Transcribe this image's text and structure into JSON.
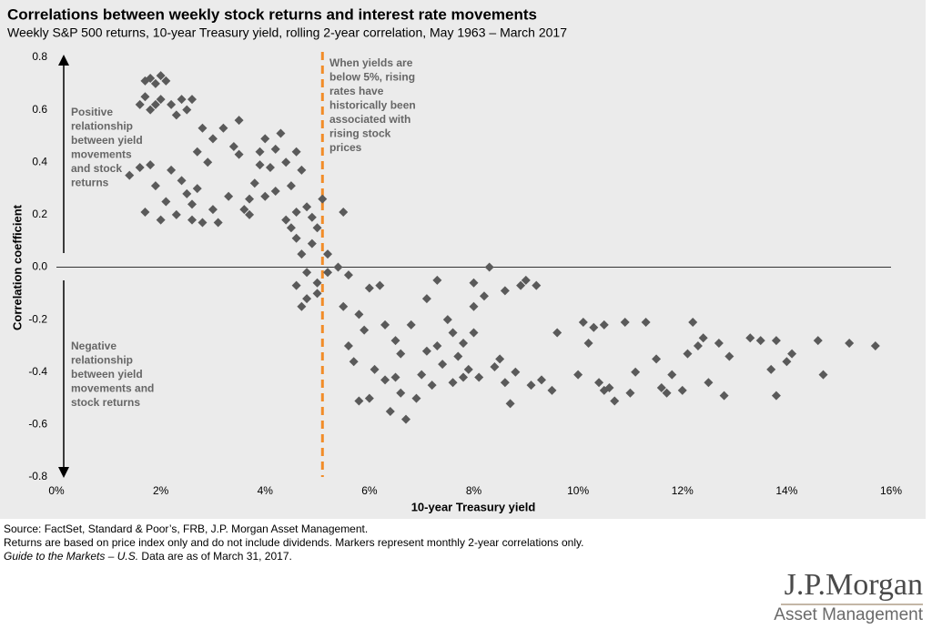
{
  "chart_data": {
    "type": "scatter",
    "title": "Correlations between weekly stock returns and interest rate movements",
    "subtitle": "Weekly S&P 500 returns, 10-year Treasury yield, rolling 2-year correlation, May 1963 – March 2017",
    "x_label": "10-year Treasury yield",
    "y_label": "Correlation coefficient",
    "color": "#5a5a5a",
    "threshold_line": {
      "x": 5.1,
      "color": "#f28c28"
    },
    "annotations": {
      "threshold": [
        "When yields are",
        "below 5%, rising",
        "rates have",
        "historically been",
        "associated with",
        "rising stock",
        "prices"
      ],
      "positive": [
        "Positive",
        "relationship",
        "between yield",
        "movements",
        "and stock",
        "returns"
      ],
      "negative": [
        "Negative",
        "relationship",
        "between yield",
        "movements and",
        "stock returns"
      ]
    },
    "xlim": [
      0,
      16
    ],
    "ylim": [
      -0.8,
      0.8
    ],
    "xticks": [
      {
        "value": 0,
        "label": "0%"
      },
      {
        "value": 2,
        "label": "2%"
      },
      {
        "value": 4,
        "label": "4%"
      },
      {
        "value": 6,
        "label": "6%"
      },
      {
        "value": 8,
        "label": "8%"
      },
      {
        "value": 10,
        "label": "10%"
      },
      {
        "value": 12,
        "label": "12%"
      },
      {
        "value": 14,
        "label": "14%"
      },
      {
        "value": 16,
        "label": "16%"
      }
    ],
    "yticks": [
      0.8,
      0.6,
      0.4,
      0.2,
      {
        "value": 0,
        "label": "0.0"
      },
      -0.2,
      -0.4,
      -0.6,
      -0.8
    ],
    "x": [
      1.6,
      1.7,
      1.8,
      1.9,
      2.0,
      2.1,
      1.7,
      1.9,
      2.0,
      1.8,
      2.2,
      2.4,
      2.5,
      2.6,
      2.3,
      1.4,
      1.6,
      1.7,
      1.8,
      1.9,
      2.0,
      2.1,
      2.2,
      2.3,
      2.4,
      2.5,
      2.6,
      2.7,
      2.8,
      2.9,
      3.0,
      2.7,
      2.8,
      3.0,
      3.2,
      3.1,
      2.6,
      3.3,
      3.4,
      3.5,
      3.6,
      3.7,
      3.8,
      3.9,
      4.0,
      4.1,
      4.2,
      4.3,
      4.4,
      4.5,
      4.6,
      4.7,
      3.5,
      3.7,
      3.9,
      4.2,
      4.4,
      4.0,
      4.6,
      4.8,
      4.6,
      4.7,
      4.8,
      4.9,
      5.0,
      5.0,
      5.1,
      5.2,
      4.6,
      4.8,
      4.5,
      4.9,
      5.2,
      5.0,
      4.7,
      5.5,
      5.4,
      5.6,
      5.5,
      5.6,
      5.7,
      5.8,
      5.9,
      6.0,
      6.1,
      6.2,
      6.3,
      6.4,
      6.5,
      6.6,
      6.7,
      6.8,
      6.9,
      7.0,
      7.1,
      7.2,
      7.3,
      7.4,
      7.5,
      7.6,
      7.7,
      7.8,
      7.9,
      8.0,
      8.1,
      8.2,
      8.3,
      8.4,
      8.5,
      8.6,
      8.7,
      8.8,
      8.9,
      9.0,
      9.1,
      9.2,
      9.3,
      9.5,
      9.6,
      5.8,
      6.3,
      6.6,
      7.1,
      7.6,
      7.8,
      8.0,
      6.0,
      6.5,
      7.3,
      8.6,
      8.0,
      10.1,
      10.2,
      10.3,
      10.4,
      10.5,
      10.6,
      10.7,
      10.9,
      11.0,
      11.1,
      11.3,
      11.5,
      11.6,
      11.7,
      11.8,
      12.0,
      12.1,
      12.3,
      12.4,
      12.5,
      12.7,
      12.8,
      12.9,
      13.3,
      13.5,
      13.7,
      13.8,
      14.0,
      14.1,
      14.6,
      14.7,
      15.2,
      15.7,
      10.0,
      10.5,
      12.2,
      13.8
    ],
    "values": [
      0.62,
      0.71,
      0.72,
      0.7,
      0.73,
      0.71,
      0.65,
      0.62,
      0.64,
      0.6,
      0.62,
      0.64,
      0.6,
      0.64,
      0.58,
      0.35,
      0.38,
      0.21,
      0.39,
      0.31,
      0.18,
      0.25,
      0.37,
      0.2,
      0.33,
      0.28,
      0.24,
      0.3,
      0.17,
      0.4,
      0.22,
      0.44,
      0.53,
      0.49,
      0.53,
      0.17,
      0.18,
      0.27,
      0.46,
      0.56,
      0.22,
      0.2,
      0.32,
      0.44,
      0.49,
      0.38,
      0.29,
      0.51,
      0.4,
      0.31,
      0.21,
      0.37,
      0.43,
      0.26,
      0.39,
      0.45,
      0.18,
      0.27,
      0.44,
      0.23,
      0.11,
      0.05,
      -0.02,
      0.09,
      0.15,
      -0.06,
      0.26,
      0.05,
      -0.07,
      -0.12,
      0.15,
      0.19,
      -0.02,
      -0.1,
      -0.15,
      0.21,
      0.0,
      -0.03,
      -0.15,
      -0.3,
      -0.36,
      -0.18,
      -0.24,
      -0.5,
      -0.39,
      -0.07,
      -0.43,
      -0.55,
      -0.28,
      -0.33,
      -0.58,
      -0.22,
      -0.5,
      -0.41,
      -0.12,
      -0.45,
      -0.3,
      -0.37,
      -0.2,
      -0.44,
      -0.34,
      -0.29,
      -0.39,
      -0.25,
      -0.42,
      -0.11,
      0.0,
      -0.38,
      -0.35,
      -0.44,
      -0.52,
      -0.4,
      -0.07,
      -0.05,
      -0.45,
      -0.07,
      -0.43,
      -0.47,
      -0.25,
      -0.51,
      -0.22,
      -0.48,
      -0.32,
      -0.25,
      -0.42,
      -0.15,
      -0.08,
      -0.42,
      -0.05,
      -0.09,
      -0.06,
      -0.21,
      -0.29,
      -0.23,
      -0.44,
      -0.47,
      -0.46,
      -0.51,
      -0.21,
      -0.48,
      -0.4,
      -0.21,
      -0.35,
      -0.46,
      -0.48,
      -0.41,
      -0.47,
      -0.33,
      -0.3,
      -0.27,
      -0.44,
      -0.29,
      -0.49,
      -0.34,
      -0.27,
      -0.28,
      -0.39,
      -0.49,
      -0.36,
      -0.33,
      -0.28,
      -0.41,
      -0.29,
      -0.3,
      -0.41,
      -0.22,
      -0.21,
      -0.28
    ]
  },
  "footer": {
    "source": "Source: FactSet, Standard & Poor’s, FRB, J.P. Morgan Asset Management.",
    "note": "Returns are based on price index only and do not include dividends. Markers represent monthly 2-year correlations only.",
    "guide_title": "Guide to the Markets – U.S.",
    "guide_date": " Data are as of March 31, 2017."
  },
  "logo": {
    "name": "J.P.Morgan",
    "division": "Asset Management"
  }
}
